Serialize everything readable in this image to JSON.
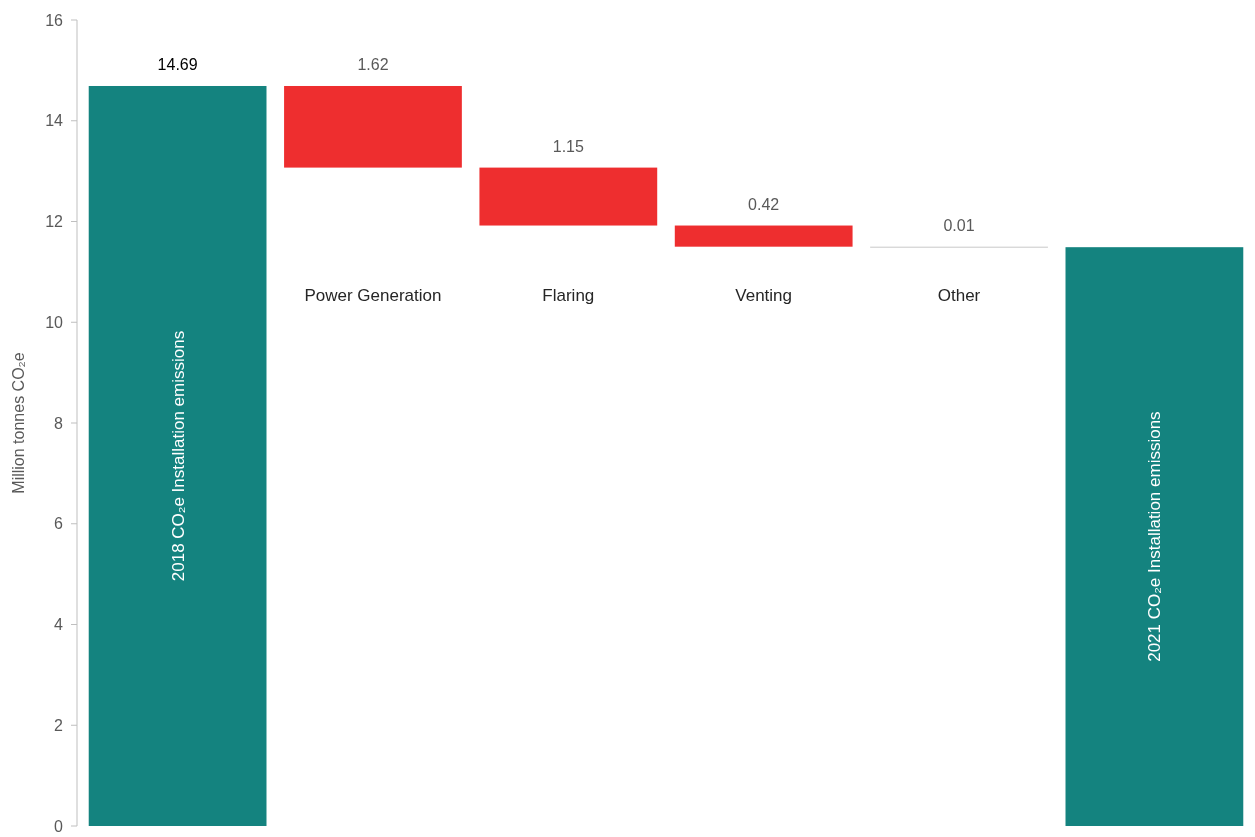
{
  "chart_data": {
    "type": "bar",
    "ylabel": "Million tonnes CO₂e",
    "categories": [
      "2018 CO₂e Installation emissions",
      "Power Generation",
      "Flaring",
      "Venting",
      "Other",
      "2021 CO₂e Installation emissions"
    ],
    "values": [
      14.69,
      1.62,
      1.15,
      0.42,
      0.01,
      11.49
    ],
    "base": [
      0,
      13.07,
      11.92,
      11.5,
      11.49,
      0
    ],
    "colors": [
      "#14837f",
      "#ee2e2f",
      "#ee2e2f",
      "#ee2e2f",
      "#c8c8c8",
      "#14837f"
    ],
    "value_labels": [
      "14.69",
      "1.62",
      "1.15",
      "0.42",
      "0.01",
      null
    ],
    "ylim": [
      0,
      16
    ],
    "yticks": [
      0,
      2,
      4,
      6,
      8,
      10,
      12,
      14,
      16
    ],
    "grid": false
  }
}
